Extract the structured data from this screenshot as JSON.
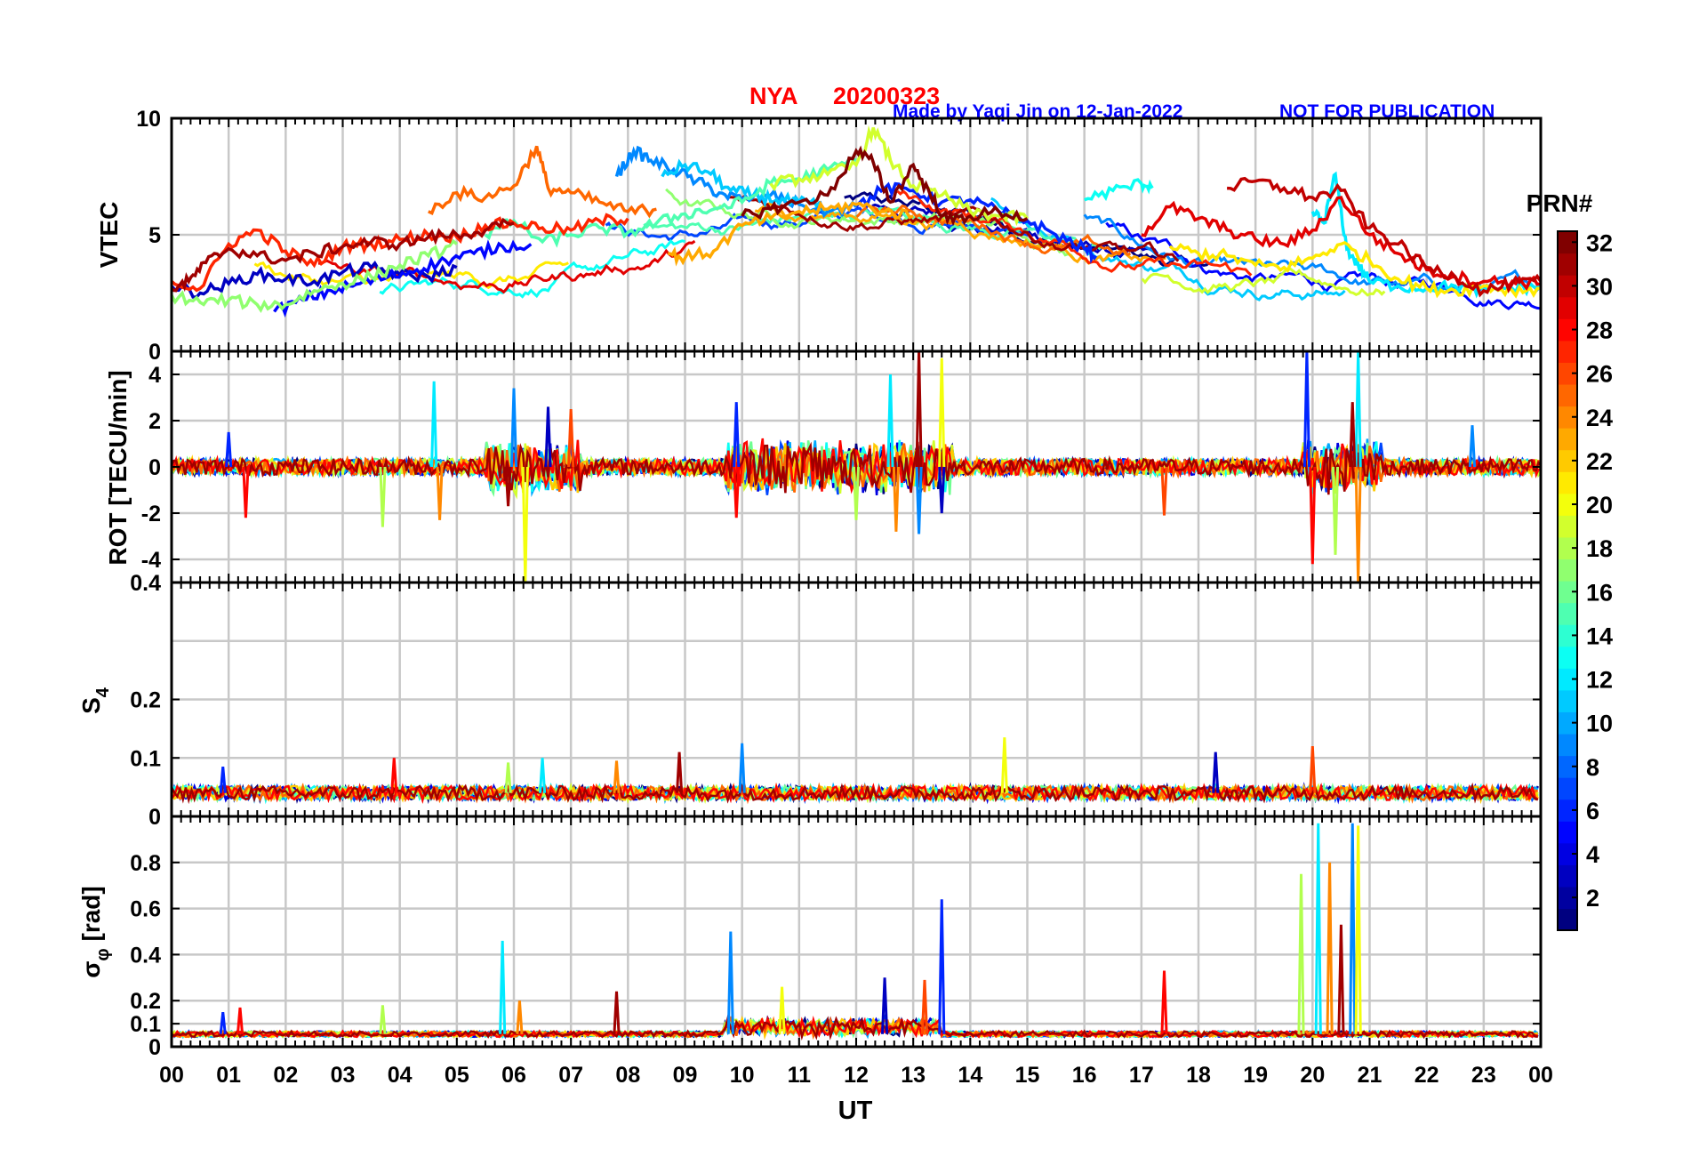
{
  "header": {
    "station": "NYA",
    "date": "20200323",
    "credit": "Made by Yaqi Jin on 12-Jan-2022",
    "notice": "NOT FOR PUBLICATION",
    "title_color": "#ff0000",
    "credit_color": "#0000ff"
  },
  "x_axis": {
    "label": "UT",
    "tick_labels": [
      "00",
      "01",
      "02",
      "03",
      "04",
      "05",
      "06",
      "07",
      "08",
      "09",
      "10",
      "11",
      "12",
      "13",
      "14",
      "15",
      "16",
      "17",
      "18",
      "19",
      "20",
      "21",
      "22",
      "23",
      "00"
    ]
  },
  "colorbar": {
    "title": "PRN#",
    "tick_labels": [
      "2",
      "4",
      "6",
      "8",
      "10",
      "12",
      "14",
      "16",
      "18",
      "20",
      "22",
      "24",
      "26",
      "28",
      "30",
      "32"
    ],
    "colormap": "jet",
    "range": [
      1,
      32
    ]
  },
  "chart_data": [
    {
      "type": "line",
      "panel": "vtec",
      "ylabel": "VTEC",
      "ylim": [
        0,
        10
      ],
      "yticks": [
        "0",
        "5",
        "10"
      ],
      "grid": true,
      "x_unit": "hours UT",
      "x_range": [
        0,
        24
      ],
      "note": "Vertical TEC for PRN 1-32; background ~2-3 at 00 UT rising to ~6-8 near 10-13 UT, falling to ~3 by 24 UT",
      "series": [
        {
          "name": "PRN 3",
          "x": [
            0.0,
            0.5,
            1.0,
            1.5,
            2.0,
            2.5,
            3.0,
            3.5,
            4.0,
            4.5,
            5.0
          ],
          "y": [
            2.8,
            2.5,
            2.9,
            3.3,
            3.1,
            3.0,
            3.4,
            3.6,
            3.3,
            3.2,
            3.6
          ]
        },
        {
          "name": "PRN 5",
          "x": [
            1.8,
            2.3,
            2.8,
            3.3,
            3.8,
            4.3,
            4.8,
            5.3,
            5.8,
            6.3
          ],
          "y": [
            1.7,
            2.2,
            2.6,
            2.9,
            3.2,
            3.5,
            3.9,
            4.2,
            4.5,
            4.6
          ]
        },
        {
          "name": "PRN 6",
          "x": [
            12.0,
            12.5,
            13.0,
            13.5,
            14.0,
            14.5,
            15.0,
            15.5,
            16.0,
            16.2
          ],
          "y": [
            6.2,
            7.0,
            6.9,
            6.4,
            6.5,
            6.0,
            5.6,
            5.0,
            4.4,
            4.1
          ]
        },
        {
          "name": "PRN 9",
          "x": [
            7.8,
            8.1,
            8.4,
            8.8,
            9.2,
            9.6,
            10.0,
            10.5,
            11.0,
            11.5,
            12.0
          ],
          "y": [
            7.5,
            8.6,
            8.2,
            7.8,
            7.3,
            6.8,
            6.5,
            6.7,
            6.3,
            6.0,
            6.2
          ]
        },
        {
          "name": "PRN 11",
          "x": [
            8.6,
            9.0,
            9.4,
            9.8,
            10.2,
            10.6,
            11.0,
            11.4
          ],
          "y": [
            7.5,
            8.0,
            7.7,
            6.9,
            6.7,
            6.5,
            6.4,
            6.2
          ]
        },
        {
          "name": "PRN 12",
          "x": [
            20.0,
            20.2,
            20.4,
            20.6,
            20.8,
            21.0,
            21.5,
            22.0,
            22.5,
            23.0,
            23.5,
            24.0
          ],
          "y": [
            6.0,
            5.5,
            7.6,
            4.4,
            3.7,
            3.0,
            2.8,
            2.7,
            2.8,
            2.6,
            2.7,
            2.8
          ]
        },
        {
          "name": "PRN 13",
          "x": [
            16.0,
            16.5,
            17.0,
            17.2
          ],
          "y": [
            6.5,
            6.9,
            7.2,
            7.1
          ]
        },
        {
          "name": "PRN 15",
          "x": [
            5.5,
            6.0,
            6.5,
            7.0,
            7.5,
            8.0,
            8.5,
            9.0,
            9.5,
            10.0,
            10.5,
            11.0,
            11.5,
            12.0
          ],
          "y": [
            5.0,
            5.6,
            4.7,
            5.0,
            5.3,
            5.1,
            5.5,
            5.9,
            6.1,
            6.4,
            7.2,
            7.4,
            7.8,
            8.2
          ]
        },
        {
          "name": "PRN 17",
          "x": [
            0.0,
            0.5,
            1.0,
            1.5,
            2.0,
            2.5,
            3.0,
            3.5,
            4.0,
            4.5,
            5.0
          ],
          "y": [
            2.4,
            2.1,
            2.2,
            2.0,
            2.0,
            2.6,
            2.9,
            3.2,
            3.7,
            4.1,
            4.6
          ]
        },
        {
          "name": "PRN 19",
          "x": [
            10.5,
            11.0,
            11.5,
            12.0,
            12.3,
            12.6,
            13.0,
            13.5,
            14.0,
            14.5,
            15.0
          ],
          "y": [
            7.2,
            7.4,
            7.6,
            8.0,
            9.6,
            8.2,
            7.1,
            6.7,
            6.0,
            5.8,
            5.7
          ]
        },
        {
          "name": "PRN 21",
          "x": [
            17.5,
            18.0,
            18.5,
            19.0,
            19.5,
            20.0,
            20.5,
            21.0,
            21.5,
            22.0,
            22.5,
            23.0,
            23.5,
            24.0
          ],
          "y": [
            4.5,
            4.2,
            4.1,
            3.7,
            3.6,
            4.0,
            4.6,
            3.9,
            3.1,
            2.7,
            2.6,
            2.8,
            2.6,
            2.7
          ]
        },
        {
          "name": "PRN 23",
          "x": [
            8.7,
            9.0,
            9.5,
            10.0,
            10.5,
            11.0,
            11.5,
            12.0,
            12.5,
            13.0
          ],
          "y": [
            4.2,
            4.0,
            4.3,
            5.4,
            5.7,
            6.0,
            6.1,
            6.3,
            6.0,
            5.8
          ]
        },
        {
          "name": "PRN 25",
          "x": [
            4.5,
            5.0,
            5.5,
            6.0,
            6.4,
            6.6,
            7.0,
            7.5,
            8.0,
            8.5
          ],
          "y": [
            6.0,
            6.8,
            6.6,
            7.1,
            8.8,
            7.0,
            6.8,
            6.4,
            6.0,
            6.1
          ]
        },
        {
          "name": "PRN 27",
          "x": [
            0.0,
            0.5,
            1.0,
            1.5,
            2.0,
            2.5,
            3.0,
            3.5,
            4.0,
            4.5,
            5.0,
            5.5,
            6.0,
            6.5,
            7.0,
            7.5,
            8.0
          ],
          "y": [
            3.0,
            2.7,
            4.6,
            5.2,
            4.3,
            3.7,
            4.5,
            4.6,
            4.8,
            5.0,
            4.9,
            5.4,
            5.5,
            5.3,
            5.2,
            5.6,
            5.7
          ]
        },
        {
          "name": "PRN 29",
          "x": [
            17.0,
            17.5,
            18.0,
            18.5,
            19.0,
            19.5,
            20.0,
            20.5,
            21.0,
            21.5,
            22.0,
            22.5,
            23.0,
            23.5,
            24.0
          ],
          "y": [
            5.0,
            6.2,
            5.7,
            5.2,
            4.8,
            4.6,
            5.2,
            6.6,
            5.0,
            4.2,
            3.5,
            3.2,
            3.0,
            3.0,
            2.9
          ]
        },
        {
          "name": "PRN 31",
          "x": [
            0.0,
            0.3,
            0.6,
            1.0,
            1.5,
            2.0,
            2.5,
            3.0,
            3.5,
            4.0,
            4.5,
            5.0,
            5.5,
            6.0
          ],
          "y": [
            2.7,
            3.0,
            3.8,
            4.4,
            4.1,
            3.9,
            4.2,
            4.5,
            4.7,
            4.6,
            4.9,
            5.0,
            5.2,
            5.5
          ]
        },
        {
          "name": "PRN 32",
          "x": [
            10.0,
            10.5,
            11.0,
            11.5,
            12.0,
            12.3,
            12.6,
            13.0,
            13.3,
            13.6,
            14.0,
            14.5,
            15.0
          ],
          "y": [
            5.8,
            6.1,
            6.4,
            6.7,
            8.6,
            8.1,
            6.4,
            8.0,
            6.7,
            5.6,
            5.8,
            6.0,
            5.7
          ]
        },
        {
          "name": "PRN 30",
          "x": [
            18.5,
            19.0,
            19.5,
            20.0,
            20.5,
            21.0,
            21.5,
            22.0,
            22.5,
            23.0,
            23.5,
            24.0
          ],
          "y": [
            7.0,
            7.3,
            7.0,
            6.6,
            6.9,
            5.3,
            4.6,
            3.6,
            3.2,
            2.6,
            2.9,
            3.0
          ]
        }
      ]
    },
    {
      "type": "line",
      "panel": "rot",
      "ylabel": "ROT [TECU/min]",
      "ylim": [
        -5,
        5
      ],
      "yticks": [
        "-4",
        "-2",
        "0",
        "2",
        "4"
      ],
      "grid": true,
      "x_unit": "hours UT",
      "note": "Rate of TEC; noise around 0 within ±1 with isolated spikes",
      "spikes": [
        {
          "x": 1.0,
          "y": 1.5
        },
        {
          "x": 1.3,
          "y": -2.2
        },
        {
          "x": 3.7,
          "y": -2.6
        },
        {
          "x": 4.6,
          "y": 3.7
        },
        {
          "x": 4.7,
          "y": -2.3
        },
        {
          "x": 5.9,
          "y": -1.7
        },
        {
          "x": 6.0,
          "y": 3.4
        },
        {
          "x": 6.2,
          "y": -5.2
        },
        {
          "x": 6.6,
          "y": 2.6
        },
        {
          "x": 7.0,
          "y": 2.5
        },
        {
          "x": 9.9,
          "y": 2.8
        },
        {
          "x": 9.9,
          "y": -2.2
        },
        {
          "x": 12.0,
          "y": -2.3
        },
        {
          "x": 12.6,
          "y": 4.0
        },
        {
          "x": 12.7,
          "y": -2.8
        },
        {
          "x": 13.1,
          "y": 5.3
        },
        {
          "x": 13.1,
          "y": -2.9
        },
        {
          "x": 13.5,
          "y": 4.7
        },
        {
          "x": 13.5,
          "y": -2.0
        },
        {
          "x": 17.4,
          "y": -2.1
        },
        {
          "x": 19.9,
          "y": 5.0
        },
        {
          "x": 20.0,
          "y": -4.2
        },
        {
          "x": 20.4,
          "y": -3.8
        },
        {
          "x": 20.8,
          "y": 5.2
        },
        {
          "x": 20.8,
          "y": -5.3
        },
        {
          "x": 20.7,
          "y": 2.8
        },
        {
          "x": 22.8,
          "y": 1.8
        }
      ]
    },
    {
      "type": "line",
      "panel": "s4",
      "ylabel": "S4",
      "ylim": [
        0,
        0.4
      ],
      "yticks": [
        "0",
        "0.1",
        "0.2",
        "0.4"
      ],
      "grid": true,
      "x_unit": "hours UT",
      "note": "Amplitude scintillation index; baseline ~0.03-0.06",
      "spikes": [
        {
          "x": 0.9,
          "y": 0.085
        },
        {
          "x": 3.9,
          "y": 0.1
        },
        {
          "x": 5.9,
          "y": 0.092
        },
        {
          "x": 6.5,
          "y": 0.1
        },
        {
          "x": 7.8,
          "y": 0.095
        },
        {
          "x": 8.9,
          "y": 0.11
        },
        {
          "x": 10.0,
          "y": 0.125
        },
        {
          "x": 14.6,
          "y": 0.135
        },
        {
          "x": 18.3,
          "y": 0.11
        },
        {
          "x": 20.0,
          "y": 0.12
        }
      ]
    },
    {
      "type": "line",
      "panel": "sigma_phi",
      "ylabel": "σ_φ [rad]",
      "ylim": [
        0,
        1
      ],
      "yticks": [
        "0",
        "0.1",
        "0.2",
        "0.4",
        "0.6",
        "0.8"
      ],
      "grid": true,
      "x_unit": "hours UT",
      "note": "Phase scintillation index; baseline ~0.05, spikes near 20-21 UT",
      "spikes": [
        {
          "x": 0.9,
          "y": 0.15
        },
        {
          "x": 1.2,
          "y": 0.17
        },
        {
          "x": 3.7,
          "y": 0.18
        },
        {
          "x": 5.8,
          "y": 0.46
        },
        {
          "x": 6.1,
          "y": 0.2
        },
        {
          "x": 7.8,
          "y": 0.24
        },
        {
          "x": 9.8,
          "y": 0.5
        },
        {
          "x": 10.7,
          "y": 0.26
        },
        {
          "x": 12.5,
          "y": 0.3
        },
        {
          "x": 13.2,
          "y": 0.29
        },
        {
          "x": 13.5,
          "y": 0.64
        },
        {
          "x": 17.4,
          "y": 0.33
        },
        {
          "x": 19.8,
          "y": 0.75
        },
        {
          "x": 20.1,
          "y": 0.97
        },
        {
          "x": 20.3,
          "y": 0.8
        },
        {
          "x": 20.5,
          "y": 0.53
        },
        {
          "x": 20.7,
          "y": 0.97
        },
        {
          "x": 20.8,
          "y": 0.96
        }
      ]
    }
  ]
}
